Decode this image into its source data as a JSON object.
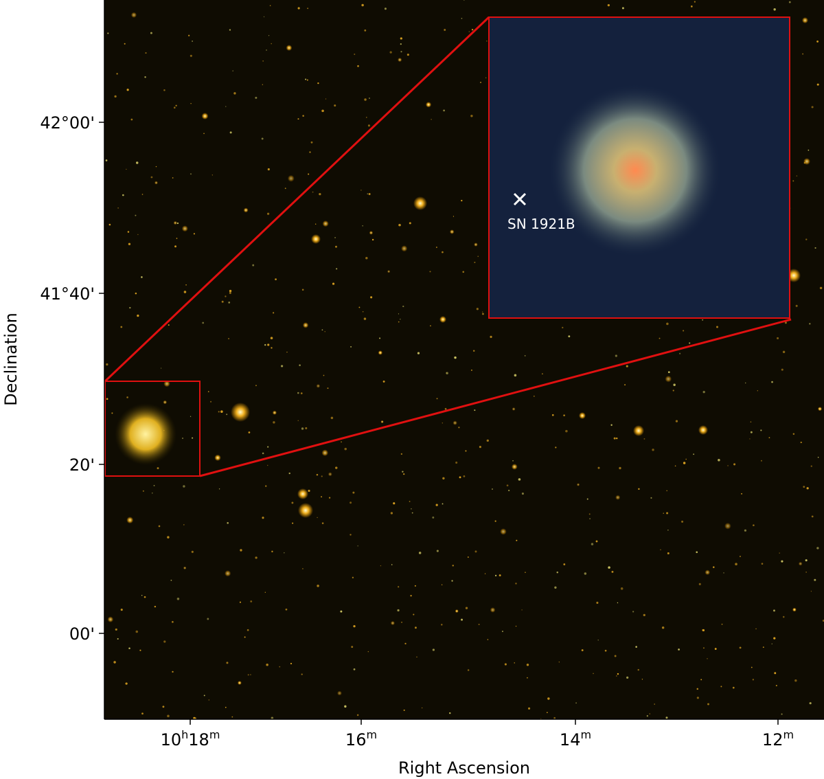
{
  "figure": {
    "x_axis": {
      "label": "Right Ascension",
      "ticks": [
        [
          "10",
          "h",
          "18",
          "m"
        ],
        [
          "16",
          "m"
        ],
        [
          "14",
          "m"
        ],
        [
          "12",
          "m"
        ]
      ]
    },
    "y_axis": {
      "label": "Declination",
      "ticks": [
        "42°00'",
        "41°40'",
        "20'",
        "00'"
      ]
    },
    "inset": {
      "annotation": "SN 1921B"
    }
  }
}
